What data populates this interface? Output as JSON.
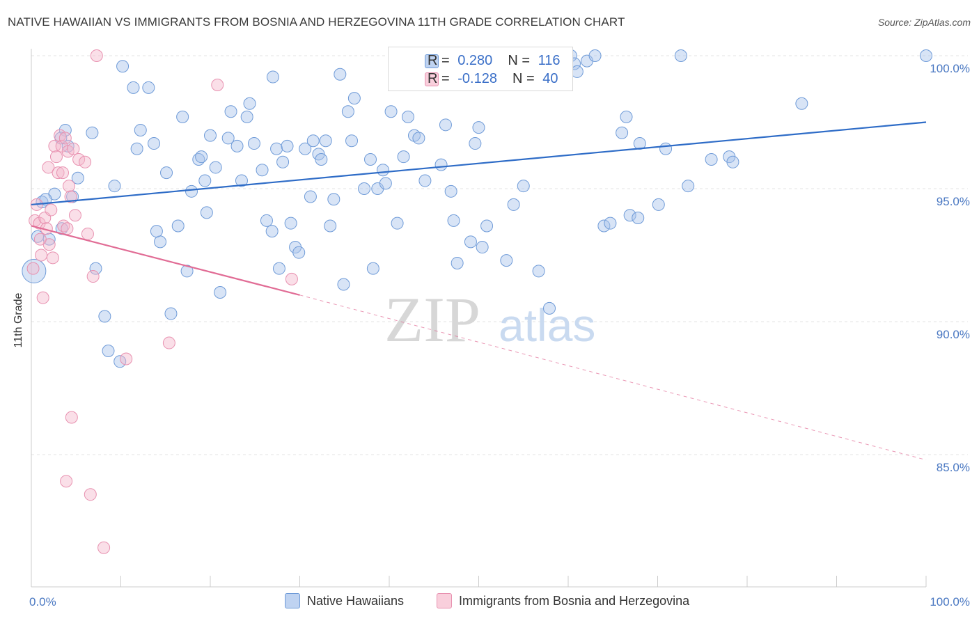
{
  "title": "NATIVE HAWAIIAN VS IMMIGRANTS FROM BOSNIA AND HERZEGOVINA 11TH GRADE CORRELATION CHART",
  "source": "Source: ZipAtlas.com",
  "watermark": {
    "zip": "ZIP",
    "atlas": "atlas"
  },
  "legend_box": {
    "rows": [
      {
        "r_label": "R =",
        "r_value": "0.280",
        "n_label": "N =",
        "n_value": "116",
        "color": "#a9c4ec"
      },
      {
        "r_label": "R =",
        "r_value": "-0.128",
        "n_label": "N =",
        "n_value": "40",
        "color": "#f5b8cc"
      }
    ]
  },
  "chart_data": {
    "type": "scatter",
    "ylabel": "11th Grade",
    "xlim": [
      0,
      100
    ],
    "ylim": [
      80.5,
      100.8
    ],
    "x_tick_labels": [
      "0.0%",
      "100.0%"
    ],
    "y_ticks": [
      {
        "value": 100,
        "label": "100.0%"
      },
      {
        "value": 95,
        "label": "95.0%"
      },
      {
        "value": 90,
        "label": "90.0%"
      },
      {
        "value": 85,
        "label": "85.0%"
      }
    ],
    "grid": "horizontal-dashed",
    "series": [
      {
        "name": "Native Hawaiians",
        "color": "#a9c4ec",
        "stroke": "#6f9bd8",
        "trend": {
          "x": [
            0,
            100
          ],
          "y": [
            94.4,
            97.5
          ],
          "color": "#2e6cc7"
        },
        "points": [
          [
            0.3,
            91.9
          ],
          [
            0.7,
            93.2
          ],
          [
            1.2,
            94.5
          ],
          [
            2.0,
            93.1
          ],
          [
            2.6,
            94.8
          ],
          [
            3.4,
            93.5
          ],
          [
            3.8,
            97.2
          ],
          [
            4.1,
            96.6
          ],
          [
            4.6,
            94.7
          ],
          [
            5.2,
            95.4
          ],
          [
            6.8,
            97.1
          ],
          [
            7.2,
            92.0
          ],
          [
            8.2,
            90.2
          ],
          [
            8.6,
            88.9
          ],
          [
            9.3,
            95.1
          ],
          [
            9.9,
            88.5
          ],
          [
            10.2,
            99.6
          ],
          [
            11.4,
            98.8
          ],
          [
            11.8,
            96.5
          ],
          [
            12.2,
            97.2
          ],
          [
            13.1,
            98.8
          ],
          [
            13.7,
            96.7
          ],
          [
            14.4,
            93.0
          ],
          [
            15.1,
            95.6
          ],
          [
            15.6,
            90.3
          ],
          [
            16.4,
            93.6
          ],
          [
            16.9,
            97.7
          ],
          [
            17.4,
            91.9
          ],
          [
            17.9,
            94.9
          ],
          [
            18.7,
            96.1
          ],
          [
            19.0,
            96.2
          ],
          [
            19.4,
            95.3
          ],
          [
            20.0,
            97.0
          ],
          [
            20.6,
            95.8
          ],
          [
            21.1,
            91.1
          ],
          [
            22.0,
            96.9
          ],
          [
            22.3,
            97.9
          ],
          [
            23.0,
            96.6
          ],
          [
            23.5,
            95.3
          ],
          [
            24.1,
            97.7
          ],
          [
            24.4,
            98.2
          ],
          [
            24.9,
            96.7
          ],
          [
            25.8,
            95.7
          ],
          [
            26.3,
            93.8
          ],
          [
            26.9,
            93.4
          ],
          [
            27.4,
            96.5
          ],
          [
            27.7,
            92.0
          ],
          [
            28.1,
            96.0
          ],
          [
            28.6,
            96.6
          ],
          [
            29.0,
            93.7
          ],
          [
            29.5,
            92.8
          ],
          [
            29.9,
            92.6
          ],
          [
            30.6,
            96.5
          ],
          [
            31.2,
            94.7
          ],
          [
            31.5,
            96.8
          ],
          [
            32.1,
            96.3
          ],
          [
            32.4,
            96.1
          ],
          [
            32.9,
            96.8
          ],
          [
            33.4,
            93.6
          ],
          [
            33.8,
            94.6
          ],
          [
            34.5,
            99.3
          ],
          [
            34.9,
            91.4
          ],
          [
            35.4,
            97.9
          ],
          [
            35.8,
            96.8
          ],
          [
            36.1,
            98.4
          ],
          [
            37.2,
            95.0
          ],
          [
            37.9,
            96.1
          ],
          [
            38.2,
            92.0
          ],
          [
            38.7,
            95.0
          ],
          [
            39.3,
            95.7
          ],
          [
            39.6,
            95.2
          ],
          [
            40.2,
            97.9
          ],
          [
            40.9,
            93.7
          ],
          [
            41.6,
            96.2
          ],
          [
            42.1,
            97.7
          ],
          [
            42.8,
            97.0
          ],
          [
            43.3,
            96.9
          ],
          [
            44.0,
            95.3
          ],
          [
            44.6,
            99.7
          ],
          [
            45.0,
            100.0
          ],
          [
            45.8,
            95.9
          ],
          [
            46.3,
            97.4
          ],
          [
            46.9,
            94.9
          ],
          [
            47.2,
            93.8
          ],
          [
            47.6,
            92.2
          ],
          [
            48.4,
            99.7
          ],
          [
            49.1,
            93.0
          ],
          [
            49.6,
            96.7
          ],
          [
            50.0,
            97.3
          ],
          [
            50.4,
            92.8
          ],
          [
            50.9,
            93.6
          ],
          [
            52.1,
            99.6
          ],
          [
            53.1,
            92.3
          ],
          [
            53.9,
            94.4
          ],
          [
            54.3,
            99.6
          ],
          [
            55.0,
            95.1
          ],
          [
            56.7,
            91.9
          ],
          [
            57.9,
            90.5
          ],
          [
            58.2,
            99.8
          ],
          [
            59.3,
            100.0
          ],
          [
            60.3,
            100.0
          ],
          [
            60.7,
            99.7
          ],
          [
            61.0,
            99.4
          ],
          [
            62.1,
            99.8
          ],
          [
            63.0,
            100.0
          ],
          [
            64.0,
            93.6
          ],
          [
            64.7,
            93.7
          ],
          [
            66.0,
            97.1
          ],
          [
            66.5,
            97.7
          ],
          [
            66.9,
            94.0
          ],
          [
            67.8,
            93.9
          ],
          [
            68.0,
            96.7
          ],
          [
            70.1,
            94.4
          ],
          [
            70.9,
            96.5
          ],
          [
            72.6,
            100.0
          ],
          [
            73.4,
            95.1
          ],
          [
            76.0,
            96.1
          ],
          [
            78.0,
            96.2
          ],
          [
            78.4,
            96.0
          ],
          [
            86.1,
            98.2
          ],
          [
            100.0,
            100.0
          ],
          [
            1.6,
            94.6
          ],
          [
            3.3,
            96.9
          ],
          [
            14.0,
            93.4
          ],
          [
            19.6,
            94.1
          ],
          [
            27.0,
            99.2
          ]
        ],
        "point_sizes": {
          "large_index": 0
        }
      },
      {
        "name": "Immigrants from Bosnia and Herzegovina",
        "color": "#f5b8cc",
        "stroke": "#e891b0",
        "trend": {
          "x": [
            0,
            30
          ],
          "y": [
            93.6,
            91.0
          ],
          "color": "#e16c95",
          "dashed_extension": {
            "x": [
              30,
              100
            ],
            "y": [
              91.0,
              84.8
            ]
          }
        },
        "points": [
          [
            0.2,
            92.0
          ],
          [
            0.4,
            93.8
          ],
          [
            0.6,
            94.4
          ],
          [
            0.9,
            93.7
          ],
          [
            1.1,
            92.5
          ],
          [
            1.3,
            90.9
          ],
          [
            1.5,
            93.9
          ],
          [
            1.7,
            93.5
          ],
          [
            1.9,
            95.8
          ],
          [
            2.0,
            92.9
          ],
          [
            2.2,
            94.2
          ],
          [
            2.4,
            92.4
          ],
          [
            2.6,
            96.6
          ],
          [
            2.8,
            96.2
          ],
          [
            3.0,
            95.6
          ],
          [
            3.2,
            97.0
          ],
          [
            3.4,
            96.6
          ],
          [
            3.5,
            95.6
          ],
          [
            3.6,
            93.6
          ],
          [
            3.8,
            96.9
          ],
          [
            3.9,
            84.0
          ],
          [
            4.0,
            93.5
          ],
          [
            4.1,
            96.4
          ],
          [
            4.2,
            95.1
          ],
          [
            4.4,
            94.7
          ],
          [
            4.5,
            86.4
          ],
          [
            4.7,
            96.5
          ],
          [
            4.9,
            94.0
          ],
          [
            5.3,
            96.1
          ],
          [
            6.0,
            96.0
          ],
          [
            6.3,
            93.3
          ],
          [
            6.6,
            83.5
          ],
          [
            6.9,
            91.7
          ],
          [
            7.3,
            100.0
          ],
          [
            8.1,
            81.5
          ],
          [
            10.6,
            88.6
          ],
          [
            15.4,
            89.2
          ],
          [
            20.8,
            98.9
          ],
          [
            29.1,
            91.6
          ],
          [
            1.0,
            93.1
          ]
        ]
      }
    ]
  },
  "legend_bottom": [
    {
      "label": "Native Hawaiians",
      "color": "#a9c4ec",
      "stroke": "#6f9bd8"
    },
    {
      "label": "Immigrants from Bosnia and Herzegovina",
      "color": "#f5b8cc",
      "stroke": "#e891b0"
    }
  ]
}
